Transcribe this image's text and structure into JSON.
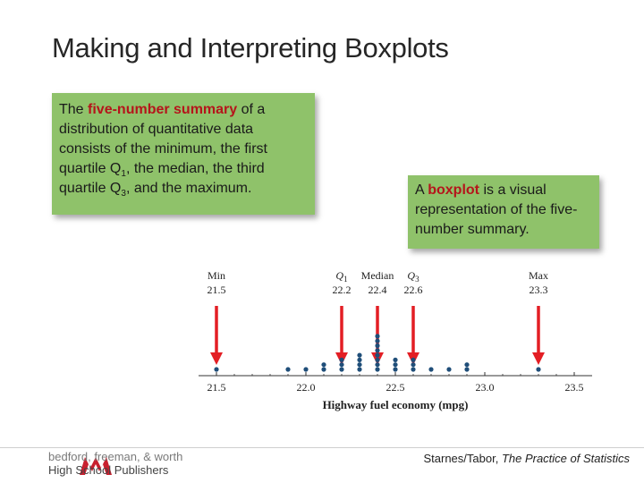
{
  "title": "Making and Interpreting Boxplots",
  "box1": {
    "p1": "The ",
    "term": "five-number summary",
    "p2": " of a distribution of quantitative data consists of the minimum, the first quartile Q",
    "q1sub": "1",
    "p3": ", the median, the third quartile Q",
    "q3sub": "3",
    "p4": ", and the maximum."
  },
  "box2": {
    "p1": "A ",
    "term": "boxplot",
    "p2": " is a visual representation of the five-number summary."
  },
  "chart_data": {
    "type": "scatter",
    "title": "",
    "xlabel": "Highway fuel economy (mpg)",
    "ylabel": "",
    "xlim": [
      21.5,
      23.5
    ],
    "x_ticks": [
      "21.5",
      "22.0",
      "22.5",
      "23.0",
      "23.5"
    ],
    "dot_color": "#1f4e79",
    "dots": [
      {
        "x": 21.5,
        "count": 1
      },
      {
        "x": 21.9,
        "count": 1
      },
      {
        "x": 22.0,
        "count": 1
      },
      {
        "x": 22.1,
        "count": 2
      },
      {
        "x": 22.2,
        "count": 3
      },
      {
        "x": 22.3,
        "count": 4
      },
      {
        "x": 22.4,
        "count": 8
      },
      {
        "x": 22.5,
        "count": 3
      },
      {
        "x": 22.6,
        "count": 3
      },
      {
        "x": 22.7,
        "count": 1
      },
      {
        "x": 22.8,
        "count": 1
      },
      {
        "x": 22.9,
        "count": 2
      },
      {
        "x": 23.3,
        "count": 1
      }
    ],
    "annotations": [
      {
        "label": "Min",
        "italic": false,
        "sub": "",
        "value": "21.5",
        "x": 21.5
      },
      {
        "label": "Q",
        "italic": true,
        "sub": "1",
        "value": "22.2",
        "x": 22.2
      },
      {
        "label": "Median",
        "italic": false,
        "sub": "",
        "value": "22.4",
        "x": 22.4
      },
      {
        "label": "Q",
        "italic": true,
        "sub": "3",
        "value": "22.6",
        "x": 22.6
      },
      {
        "label": "Max",
        "italic": false,
        "sub": "",
        "value": "23.3",
        "x": 23.3
      }
    ],
    "arrow_color": "#e31e24"
  },
  "footer": {
    "publisher_line1": "bedford, freeman, & worth",
    "publisher_line2": "High School Publishers",
    "citation_authors": "Starnes/Tabor, ",
    "citation_book": "The Practice of Statistics"
  }
}
